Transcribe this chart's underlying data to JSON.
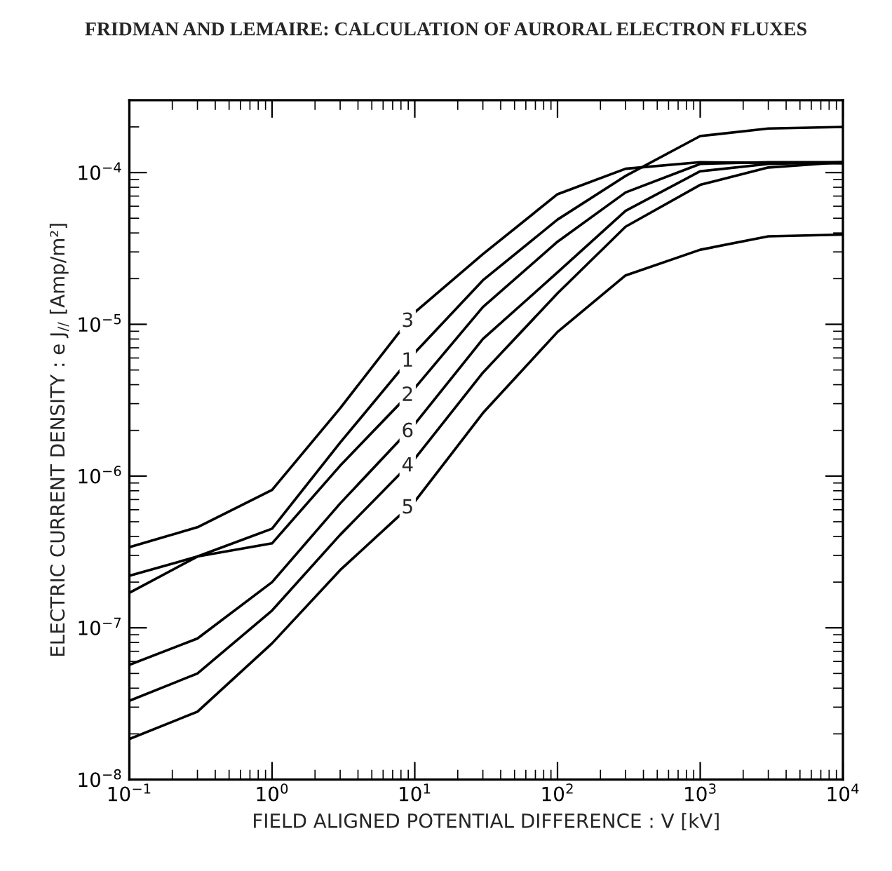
{
  "chart_data": {
    "type": "line",
    "title": "FRIDMAN AND LEMAIRE: CALCULATION OF AURORAL ELECTRON FLUXES",
    "xlabel": "FIELD ALIGNED POTENTIAL DIFFERENCE : V [kV]",
    "ylabel": "ELECTRIC CURRENT DENSITY : e J$_{//}$ [Amp/m²]",
    "log": "xy",
    "grid": false,
    "legend": false,
    "marker": "none",
    "line_style": "solid",
    "xlim": [
      0.1,
      10000
    ],
    "ylim": [
      1e-08,
      0.0003
    ],
    "xticks": [
      {
        "value": 0.1,
        "label": "10$^{−1}$"
      },
      {
        "value": 1,
        "label": "10$^{0}$"
      },
      {
        "value": 10,
        "label": "10$^{1}$"
      },
      {
        "value": 100,
        "label": "10$^{2}$"
      },
      {
        "value": 1000,
        "label": "10$^{3}$"
      },
      {
        "value": 10000,
        "label": "10$^{4}$"
      }
    ],
    "yticks": [
      {
        "value": 1e-08,
        "label": "10$^{−8}$"
      },
      {
        "value": 1e-07,
        "label": "10$^{−7}$"
      },
      {
        "value": 1e-06,
        "label": "10$^{−6}$"
      },
      {
        "value": 1e-05,
        "label": "10$^{−5}$"
      },
      {
        "value": 0.0001,
        "label": "10$^{−4}$"
      }
    ],
    "x": [
      0.1,
      0.3,
      1,
      3,
      10,
      30,
      100,
      300,
      1000,
      3000,
      10000
    ],
    "series": [
      {
        "name": "3",
        "color": "#000000",
        "values": [
          3.4e-07,
          4.6e-07,
          8.1e-07,
          2.8e-06,
          1.2e-05,
          2.9e-05,
          7.2e-05,
          0.000106,
          0.000117,
          0.000116,
          0.000115
        ]
      },
      {
        "name": "1",
        "color": "#000000",
        "values": [
          1.7e-07,
          2.95e-07,
          4.5e-07,
          1.66e-06,
          6.5e-06,
          1.95e-05,
          4.9e-05,
          9.5e-05,
          0.000174,
          0.000195,
          0.0002
        ]
      },
      {
        "name": "2",
        "color": "#000000",
        "values": [
          2.2e-07,
          2.95e-07,
          3.6e-07,
          1.17e-06,
          3.8e-06,
          1.3e-05,
          3.5e-05,
          7.4e-05,
          0.000114,
          0.000117,
          0.000117
        ]
      },
      {
        "name": "6",
        "color": "#000000",
        "values": [
          5.7e-08,
          8.5e-08,
          2e-07,
          6.6e-07,
          2.2e-06,
          8e-06,
          2.2e-05,
          5.6e-05,
          0.000102,
          0.000114,
          0.000117
        ]
      },
      {
        "name": "4",
        "color": "#000000",
        "values": [
          3.3e-08,
          5e-08,
          1.3e-07,
          4.1e-07,
          1.3e-06,
          4.8e-06,
          1.6e-05,
          4.4e-05,
          8.3e-05,
          0.000108,
          0.000117
        ]
      },
      {
        "name": "5",
        "color": "#000000",
        "values": [
          1.85e-08,
          2.8e-08,
          7.9e-08,
          2.4e-07,
          6.8e-07,
          2.6e-06,
          8.9e-06,
          2.1e-05,
          3.1e-05,
          3.8e-05,
          3.9e-05
        ]
      }
    ]
  }
}
